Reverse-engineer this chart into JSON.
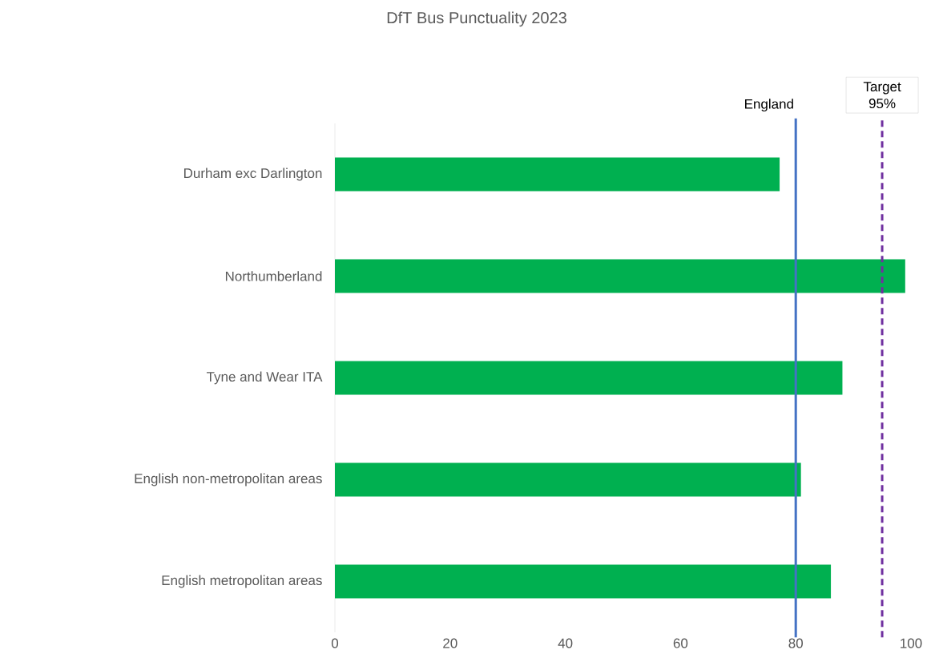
{
  "chart_data": {
    "type": "bar",
    "orientation": "horizontal",
    "title": "DfT Bus Punctuality 2023",
    "categories": [
      "Durham exc Darlington",
      "Northumberland",
      "Tyne and Wear ITA",
      "English non-metropolitan areas",
      "English metropolitan areas"
    ],
    "values": [
      77.2,
      99.0,
      88.1,
      80.9,
      86.1
    ],
    "color": "#00b050",
    "xlim": [
      0,
      100
    ],
    "xticks": [
      0,
      20,
      40,
      60,
      80,
      100
    ],
    "grid": false,
    "ref_lines": [
      {
        "axis": "x",
        "value": 80,
        "label": "England",
        "color": "#4472c4",
        "line_style": "solid"
      },
      {
        "axis": "x",
        "value": 95,
        "label": "Target 95%",
        "color": "#7030a0",
        "line_style": "dashed"
      }
    ]
  }
}
